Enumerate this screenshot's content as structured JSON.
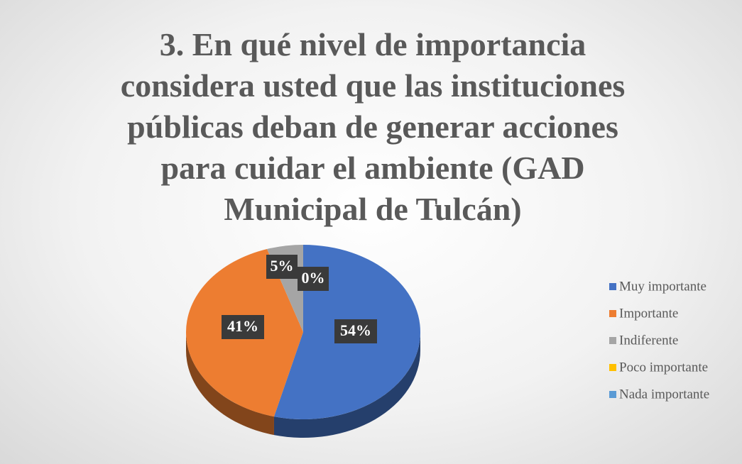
{
  "chart_data": {
    "type": "pie",
    "title": "3. En qué nivel de importancia considera usted que las instituciones públicas deban de generar acciones para cuidar el ambiente (GAD Municipal de Tulcán)",
    "categories": [
      "Muy importante",
      "Importante",
      "Indiferente",
      "Poco importante",
      "Nada importante"
    ],
    "values": [
      54,
      41,
      5,
      0,
      0
    ],
    "value_labels": [
      "54%",
      "41%",
      "5%",
      "0%",
      null
    ],
    "colors": [
      "#4472c4",
      "#ed7d31",
      "#a5a5a5",
      "#ffc000",
      "#5b9bd5"
    ],
    "legend": "right"
  }
}
